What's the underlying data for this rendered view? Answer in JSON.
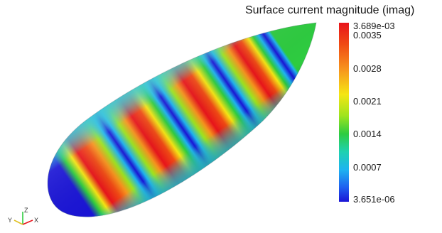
{
  "colorbar": {
    "title": "Surface current magnitude (imag)",
    "max_label": "3.689e-03",
    "min_label": "3.651e-06",
    "ticks": [
      "0.0035",
      "0.0028",
      "0.0021",
      "0.0014",
      "0.0007"
    ]
  },
  "axes": {
    "x": "X",
    "y": "Y",
    "z": "Z"
  }
}
